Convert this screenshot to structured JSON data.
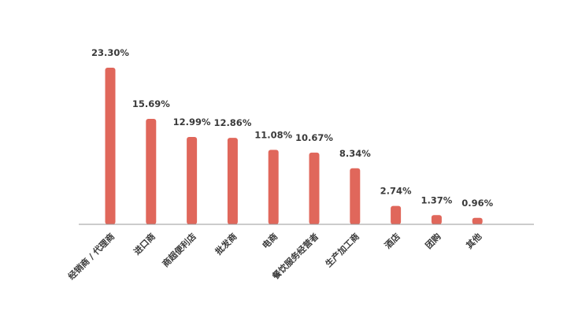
{
  "chart_data": {
    "type": "bar",
    "title": "",
    "xlabel": "",
    "ylabel": "",
    "categories": [
      "经销商 / 代理商",
      "进口商",
      "商超便利店",
      "批发商",
      "电商",
      "餐饮服务经营者",
      "生产加工商",
      "酒店",
      "团购",
      "其他"
    ],
    "values": [
      23.3,
      15.69,
      12.99,
      12.86,
      11.08,
      10.67,
      8.34,
      2.74,
      1.37,
      0.96
    ],
    "value_labels": [
      "23.30%",
      "15.69%",
      "12.99%",
      "12.86%",
      "11.08%",
      "10.67%",
      "8.34%",
      "2.74%",
      "1.37%",
      "0.96%"
    ],
    "ylim": [
      0,
      23.3
    ],
    "grid": false,
    "legend": "none",
    "bar_color": "#e0675b",
    "axis_color": "#9a9a9a"
  }
}
